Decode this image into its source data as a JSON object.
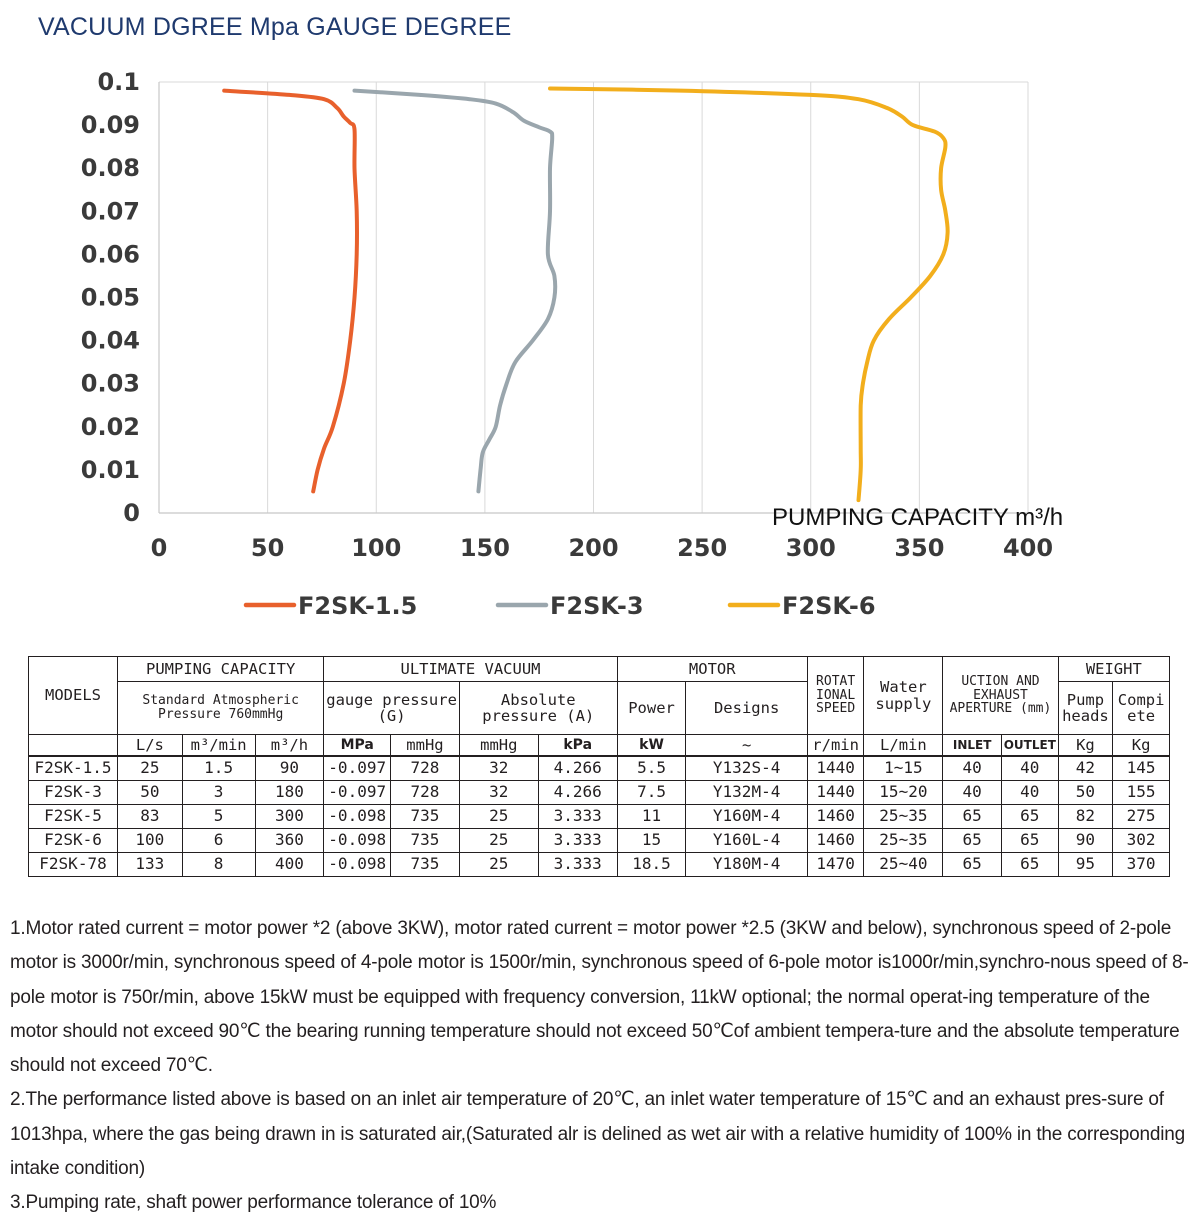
{
  "title": "VACUUM DGREE Mpa GAUGE DEGREE",
  "chart_data": {
    "type": "line",
    "xlabel": "PUMPING  CAPACITY m³/h",
    "ylabel": "",
    "xlim": [
      0,
      400
    ],
    "ylim": [
      0,
      0.1
    ],
    "x_ticks": [
      "0",
      "50",
      "100",
      "150",
      "200",
      "250",
      "300",
      "350",
      "400"
    ],
    "y_ticks": [
      "0",
      "0.01",
      "0.02",
      "0.03",
      "0.04",
      "0.05",
      "0.06",
      "0.07",
      "0.08",
      "0.09",
      "0.1"
    ],
    "grid": "vertical",
    "legend": "bottom",
    "series": [
      {
        "name": "F2SK-1.5",
        "color": "#e8602c",
        "points": [
          [
            30,
            0.098
          ],
          [
            60,
            0.097
          ],
          [
            76,
            0.096
          ],
          [
            82,
            0.094
          ],
          [
            85,
            0.092
          ],
          [
            88,
            0.0905
          ],
          [
            90,
            0.089
          ],
          [
            90,
            0.08
          ],
          [
            91,
            0.07
          ],
          [
            91,
            0.06
          ],
          [
            90,
            0.05
          ],
          [
            88,
            0.04
          ],
          [
            85,
            0.03
          ],
          [
            80,
            0.02
          ],
          [
            76,
            0.015
          ],
          [
            73,
            0.01
          ],
          [
            71,
            0.005
          ]
        ]
      },
      {
        "name": "F2SK-3",
        "color": "#9aa6ad",
        "points": [
          [
            90,
            0.098
          ],
          [
            120,
            0.097
          ],
          [
            143,
            0.096
          ],
          [
            155,
            0.095
          ],
          [
            163,
            0.093
          ],
          [
            168,
            0.091
          ],
          [
            175,
            0.0895
          ],
          [
            180,
            0.0885
          ],
          [
            181,
            0.087
          ],
          [
            180,
            0.08
          ],
          [
            180,
            0.07
          ],
          [
            179,
            0.06
          ],
          [
            182,
            0.055
          ],
          [
            182,
            0.05
          ],
          [
            179,
            0.045
          ],
          [
            172,
            0.04
          ],
          [
            164,
            0.035
          ],
          [
            160,
            0.03
          ],
          [
            157,
            0.025
          ],
          [
            155,
            0.02
          ],
          [
            152,
            0.017
          ],
          [
            149,
            0.014
          ],
          [
            148,
            0.01
          ],
          [
            147,
            0.005
          ]
        ]
      },
      {
        "name": "F2SK-6",
        "color": "#f2ae1c",
        "points": [
          [
            180,
            0.0985
          ],
          [
            240,
            0.098
          ],
          [
            300,
            0.097
          ],
          [
            322,
            0.096
          ],
          [
            335,
            0.094
          ],
          [
            342,
            0.092
          ],
          [
            347,
            0.09
          ],
          [
            357,
            0.0885
          ],
          [
            361,
            0.087
          ],
          [
            362,
            0.085
          ],
          [
            360,
            0.08
          ],
          [
            360,
            0.075
          ],
          [
            362,
            0.07
          ],
          [
            363,
            0.065
          ],
          [
            361,
            0.06
          ],
          [
            355,
            0.055
          ],
          [
            346,
            0.05
          ],
          [
            336,
            0.045
          ],
          [
            329,
            0.04
          ],
          [
            326,
            0.035
          ],
          [
            324,
            0.03
          ],
          [
            323,
            0.025
          ],
          [
            323,
            0.015
          ],
          [
            323,
            0.01
          ],
          [
            322,
            0.003
          ]
        ]
      }
    ]
  },
  "table": {
    "models_label": "MODELS",
    "group_pumping": "PUMPING CAPACITY",
    "group_vacuum": "ULTIMATE VACUUM",
    "group_motor": "MOTOR",
    "rot_speed": "ROTAT IONAL SPEED",
    "water_supply": "Water supply",
    "suction_aperture": "UCTION AND EXHAUST APERTURE (mm)",
    "group_weight": "WEIGHT",
    "std_atm": "Standard Atmospheric Pressure 760mmHg",
    "gauge_pressure": "gauge pressure (G)",
    "abs_pressure": "Absolute pressure (A)",
    "power": "Power",
    "designs": "Designs",
    "pump_heads": "Pump heads",
    "complete": "Compi ete",
    "units": [
      "L/s",
      "m³/min",
      "m³/h",
      "MPa",
      "mmHg",
      "mmHg",
      "kPa",
      "kW",
      "~",
      "r/min",
      "L/min",
      "INLET",
      "OUTLET",
      "Kg",
      "Kg"
    ],
    "rows": [
      [
        "F2SK-1.5",
        "25",
        "1.5",
        "90",
        "-0.097",
        "728",
        "32",
        "4.266",
        "5.5",
        "Y132S-4",
        "1440",
        "1~15",
        "40",
        "40",
        "42",
        "145"
      ],
      [
        "F2SK-3",
        "50",
        "3",
        "180",
        "-0.097",
        "728",
        "32",
        "4.266",
        "7.5",
        "Y132M-4",
        "1440",
        "15~20",
        "40",
        "40",
        "50",
        "155"
      ],
      [
        "F2SK-5",
        "83",
        "5",
        "300",
        "-0.098",
        "735",
        "25",
        "3.333",
        "11",
        "Y160M-4",
        "1460",
        "25~35",
        "65",
        "65",
        "82",
        "275"
      ],
      [
        "F2SK-6",
        "100",
        "6",
        "360",
        "-0.098",
        "735",
        "25",
        "3.333",
        "15",
        "Y160L-4",
        "1460",
        "25~35",
        "65",
        "65",
        "90",
        "302"
      ],
      [
        "F2SK-78",
        "133",
        "8",
        "400",
        "-0.098",
        "735",
        "25",
        "3.333",
        "18.5",
        "Y180M-4",
        "1470",
        "25~40",
        "65",
        "65",
        "95",
        "370"
      ]
    ]
  },
  "notes": [
    "1.Motor rated current = motor power *2 (above 3KW), motor rated current = motor power *2.5 (3KW and below), synchronous speed of 2-pole motor is 3000r/min, synchronous speed of 4-pole motor is 1500r/min, synchronous speed of 6-pole motor is1000r/min,synchro-nous speed of 8-pole motor is 750r/min, above 15kW must be equipped with frequency conversion, 11kW optional; the normal operat-ing temperature of the motor should not exceed 90℃ the bearing running temperature should not exceed 50℃of ambient tempera-ture and the absolute temperature should not exceed 70℃.",
    "2.The performance listed above is based on an inlet air temperature of 20℃, an inlet water temperature of 15℃ and an exhaust pres-sure of 1013hpa, where the gas being drawn in is saturated air,(Saturated alr is delined as wet air with a relative humidity of 100% in the corresponding intake condition)",
    "3.Pumping rate, shaft power performance tolerance of 10%"
  ]
}
